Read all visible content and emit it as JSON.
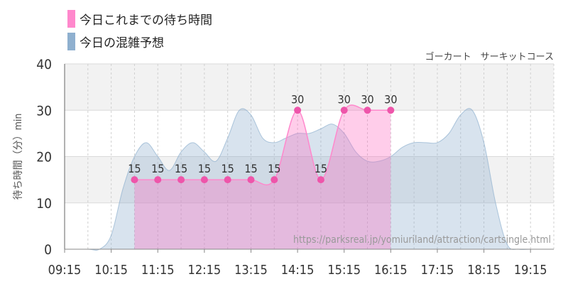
{
  "legend": [
    {
      "label": "今日これまでの待ち時間",
      "color": "#ff88cc"
    },
    {
      "label": "今日の混雑予想",
      "color": "#8fb0cf"
    }
  ],
  "subtitle": "ゴーカート　サーキットコース",
  "ylabel": "待ち時間（分）min",
  "watermark": "https://parksreal.jp/yomiuriland/attraction/cartsingle.html",
  "chart_data": {
    "type": "area",
    "xlabel": "",
    "ylabel": "待ち時間（分）min",
    "ylim": [
      0,
      40
    ],
    "y_ticks": [
      0,
      10,
      20,
      30,
      40
    ],
    "x_ticks": [
      "09:15",
      "10:15",
      "11:15",
      "12:15",
      "13:15",
      "14:15",
      "15:15",
      "16:15",
      "17:15",
      "18:15",
      "19:15"
    ],
    "grid": true,
    "legend_position": "top-left",
    "series": [
      {
        "name": "今日の混雑予想",
        "color": "#8fb0cf",
        "x": [
          "09:15",
          "09:45",
          "10:00",
          "10:15",
          "10:30",
          "10:45",
          "11:00",
          "11:15",
          "11:30",
          "11:45",
          "12:00",
          "12:15",
          "12:30",
          "12:45",
          "13:00",
          "13:15",
          "13:30",
          "13:45",
          "14:00",
          "14:15",
          "14:30",
          "14:45",
          "15:00",
          "15:15",
          "15:30",
          "15:45",
          "16:00",
          "16:15",
          "16:30",
          "16:45",
          "17:00",
          "17:15",
          "17:30",
          "17:45",
          "18:00",
          "18:15",
          "18:30",
          "18:45",
          "19:00",
          "19:15",
          "19:45"
        ],
        "values": [
          0,
          0,
          0,
          3,
          13,
          20,
          23,
          20,
          17,
          21,
          23,
          21,
          19,
          24,
          30,
          29,
          24,
          23,
          24,
          25,
          25,
          26,
          27,
          25,
          21,
          19,
          19,
          20,
          22,
          23,
          23,
          23,
          25,
          29,
          30,
          23,
          10,
          1,
          0,
          0,
          0
        ]
      },
      {
        "name": "今日これまでの待ち時間",
        "color": "#ff88cc",
        "x": [
          "10:45",
          "11:15",
          "11:45",
          "12:15",
          "12:45",
          "13:15",
          "13:45",
          "14:15",
          "14:45",
          "15:15",
          "15:45",
          "16:15"
        ],
        "values": [
          15,
          15,
          15,
          15,
          15,
          15,
          15,
          30,
          15,
          30,
          30,
          30
        ]
      }
    ]
  }
}
